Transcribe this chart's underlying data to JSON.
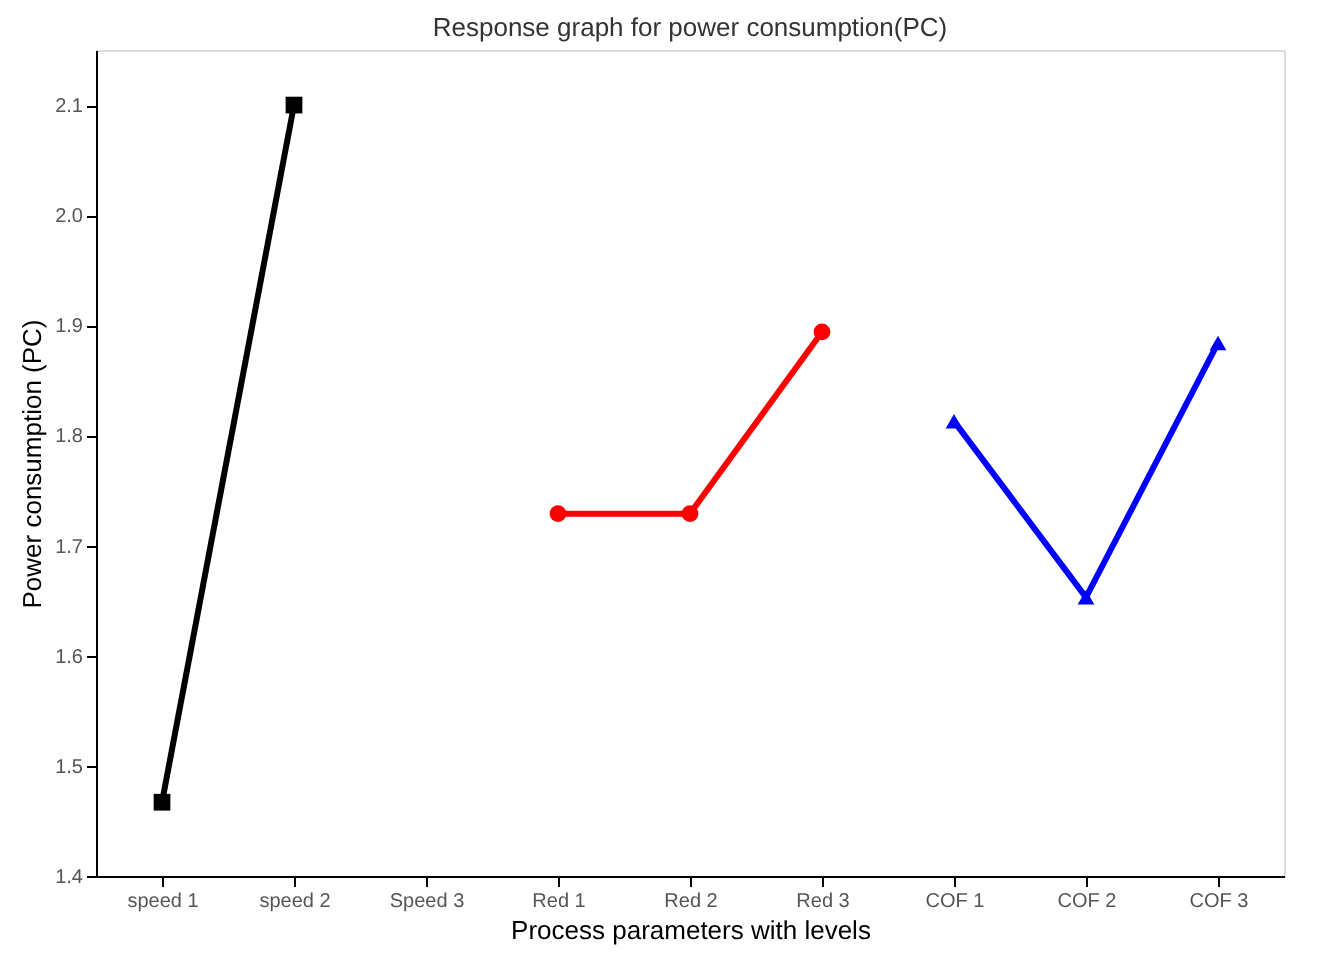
{
  "chart_data": {
    "type": "line",
    "title": "Response graph for power consumption(PC)",
    "xlabel": "Process parameters with levels",
    "ylabel": "Power consumption (PC)",
    "categories": [
      "speed 1",
      "speed 2",
      "Speed 3",
      "Red 1",
      "Red 2",
      "Red 3",
      "COF 1",
      "COF 2",
      "COF 3"
    ],
    "series": [
      {
        "color": "#000000",
        "marker": "square",
        "values": [
          1.467,
          2.1,
          null,
          null,
          null,
          null,
          null,
          null,
          null
        ]
      },
      {
        "color": "#ff0000",
        "marker": "circle",
        "values": [
          null,
          null,
          null,
          1.729,
          1.729,
          1.894,
          null,
          null,
          null
        ]
      },
      {
        "color": "#0000ff",
        "marker": "triangle",
        "values": [
          null,
          null,
          null,
          null,
          null,
          null,
          1.813,
          1.653,
          1.884
        ]
      }
    ],
    "ylim": [
      1.4,
      2.15
    ],
    "yticks": [
      1.4,
      1.5,
      1.6,
      1.7,
      1.8,
      1.9,
      {
        "value": 2.0,
        "label": "2.0"
      },
      2.1
    ],
    "grid": false
  }
}
